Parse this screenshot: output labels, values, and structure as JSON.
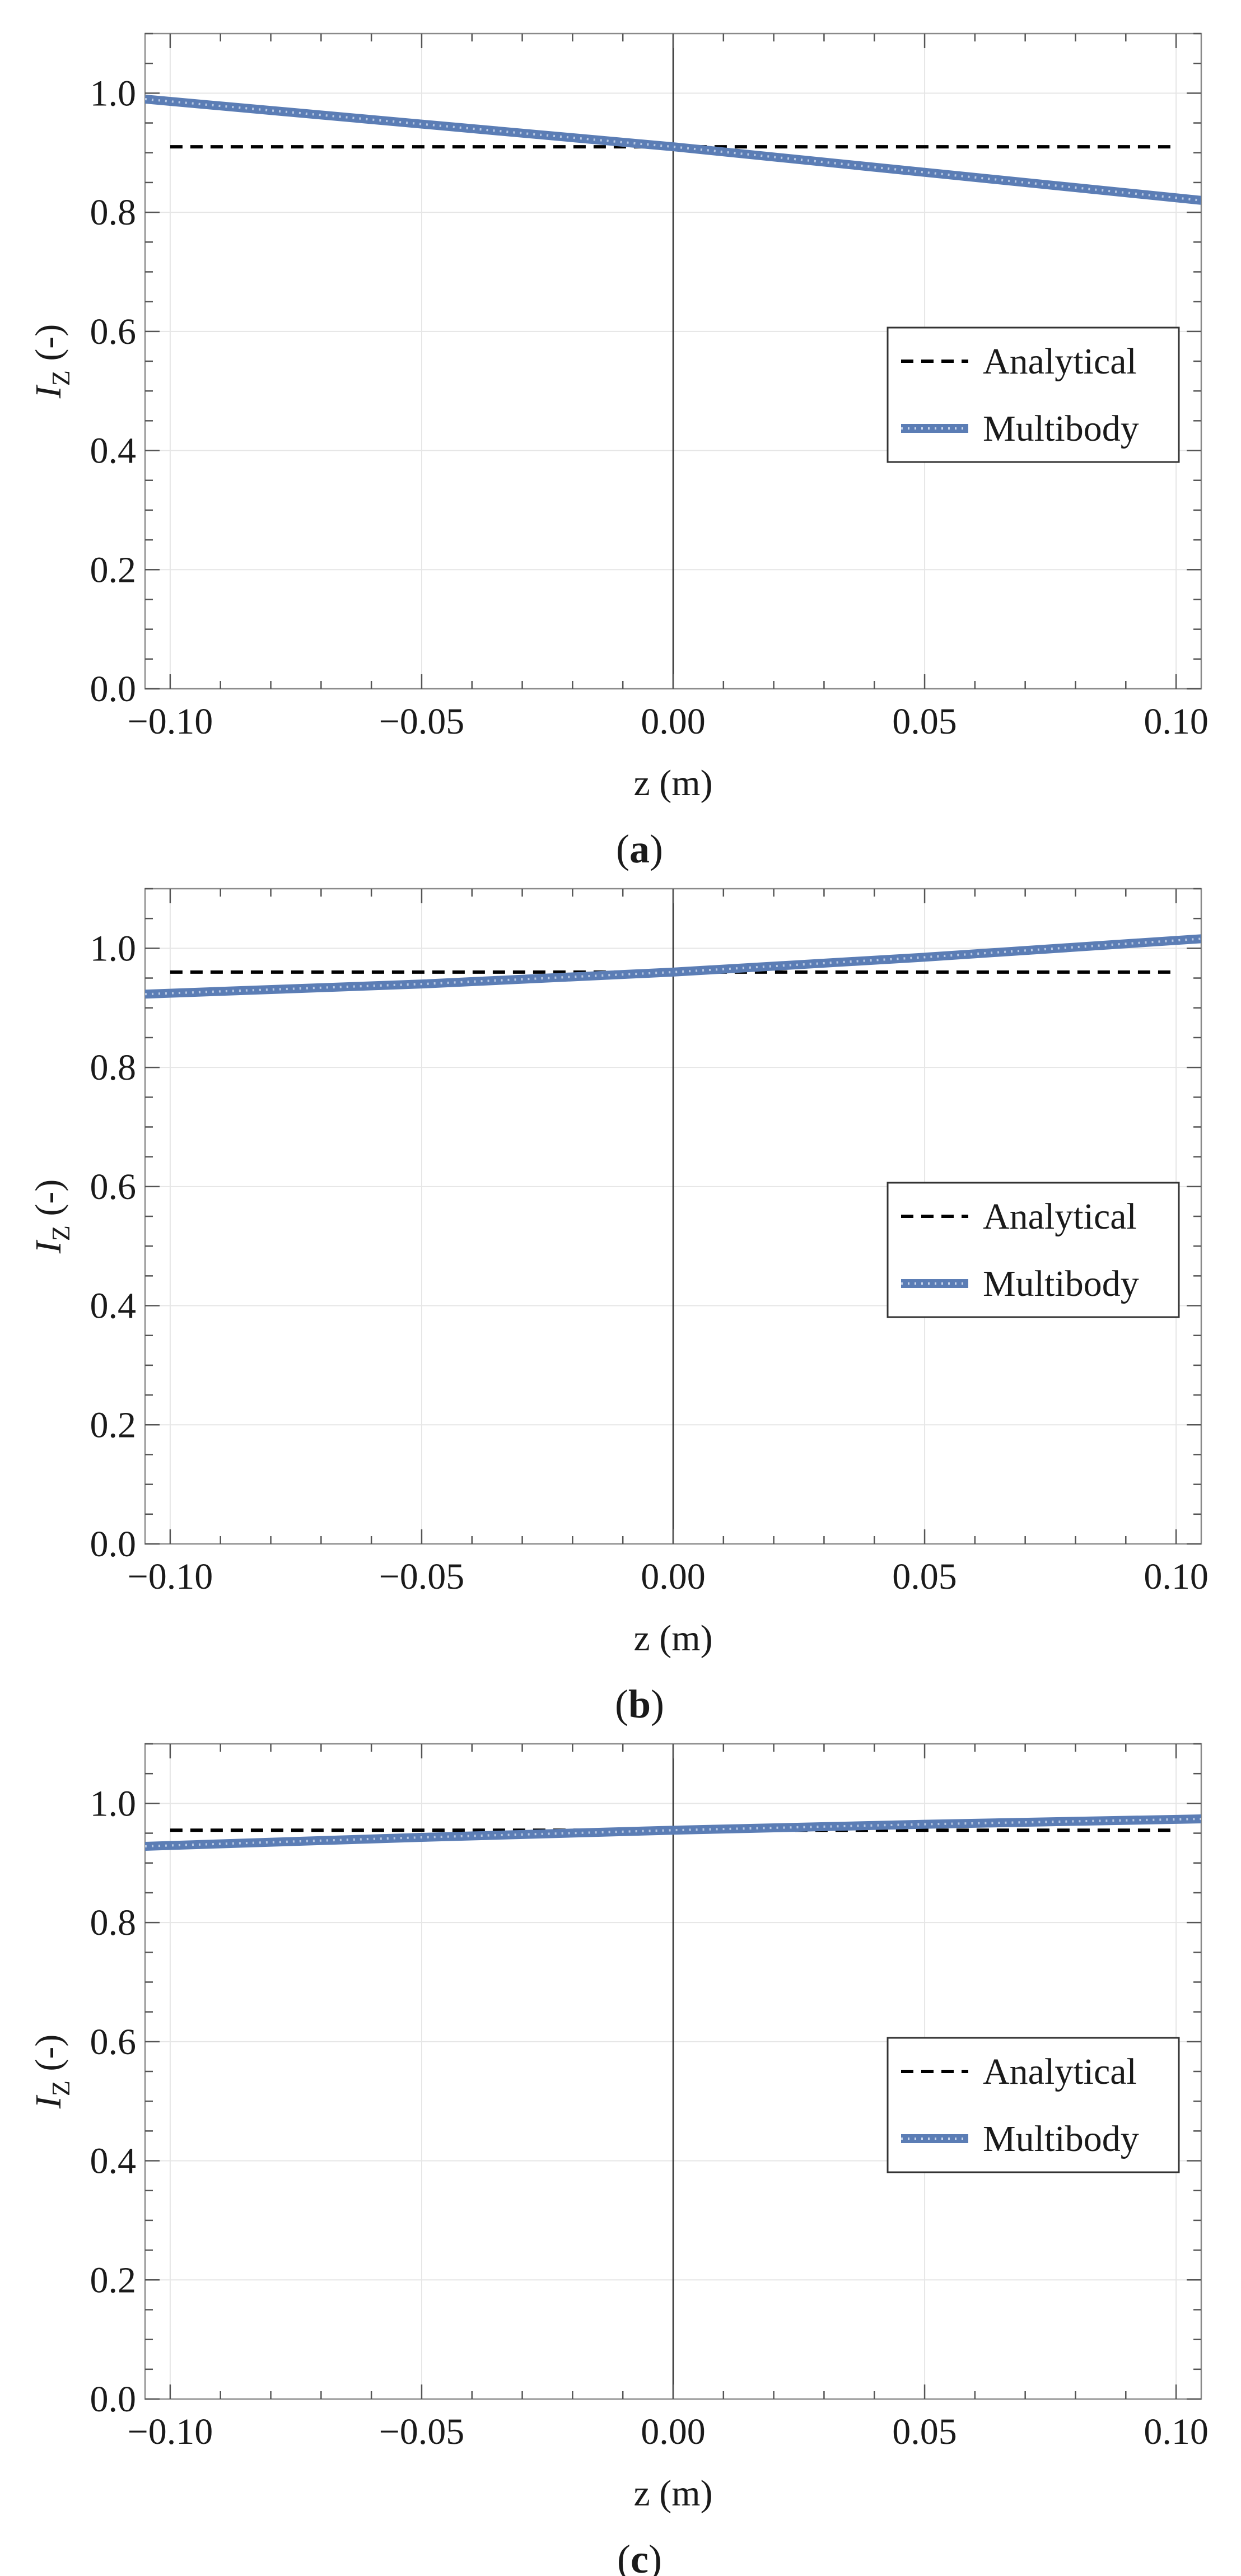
{
  "figure": {
    "subfigure_captions": [
      "(a)",
      "(b)",
      "(c)"
    ]
  },
  "chart_data": [
    {
      "type": "line",
      "panel": "a",
      "caption": "(a)",
      "caption_open": "(",
      "caption_letter": "a",
      "caption_close": ")",
      "xlabel": "z (m)",
      "ylabel_main": "I",
      "ylabel_sub": "Z",
      "ylabel_unit": " (-)",
      "xlim": [
        -0.105,
        0.105
      ],
      "ylim": [
        0.0,
        1.1
      ],
      "xticks": [
        -0.1,
        -0.05,
        0.0,
        0.05,
        0.1
      ],
      "xtick_labels": [
        "−0.10",
        "−0.05",
        "0.00",
        "0.05",
        "0.10"
      ],
      "yticks": [
        0.0,
        0.2,
        0.4,
        0.6,
        0.8,
        1.0
      ],
      "ytick_labels": [
        "0.0",
        "0.2",
        "0.4",
        "0.6",
        "0.8",
        "1.0"
      ],
      "grid": true,
      "legend_position": "right-middle",
      "series": [
        {
          "name": "Analytical",
          "style": "dashed",
          "color": "#000000",
          "x": [
            -0.1,
            0.1
          ],
          "y": [
            0.91,
            0.91
          ]
        },
        {
          "name": "Multibody",
          "style": "dotted-thick",
          "color": "#5b7db5",
          "x": [
            -0.105,
            0.0,
            0.105
          ],
          "y": [
            0.99,
            0.91,
            0.82
          ]
        }
      ]
    },
    {
      "type": "line",
      "panel": "b",
      "caption": "(b)",
      "caption_open": "(",
      "caption_letter": "b",
      "caption_close": ")",
      "xlabel": "z (m)",
      "ylabel_main": "I",
      "ylabel_sub": "Z",
      "ylabel_unit": " (-)",
      "xlim": [
        -0.105,
        0.105
      ],
      "ylim": [
        0.0,
        1.1
      ],
      "xticks": [
        -0.1,
        -0.05,
        0.0,
        0.05,
        0.1
      ],
      "xtick_labels": [
        "−0.10",
        "−0.05",
        "0.00",
        "0.05",
        "0.10"
      ],
      "yticks": [
        0.0,
        0.2,
        0.4,
        0.6,
        0.8,
        1.0
      ],
      "ytick_labels": [
        "0.0",
        "0.2",
        "0.4",
        "0.6",
        "0.8",
        "1.0"
      ],
      "grid": true,
      "legend_position": "right-middle",
      "series": [
        {
          "name": "Analytical",
          "style": "dashed",
          "color": "#000000",
          "x": [
            -0.1,
            0.1
          ],
          "y": [
            0.96,
            0.96
          ]
        },
        {
          "name": "Multibody",
          "style": "dotted-thick",
          "color": "#5b7db5",
          "x": [
            -0.105,
            -0.05,
            0.0,
            0.05,
            0.105
          ],
          "y": [
            0.923,
            0.94,
            0.96,
            0.985,
            1.016
          ]
        }
      ]
    },
    {
      "type": "line",
      "panel": "c",
      "caption": "(c)",
      "caption_open": "(",
      "caption_letter": "c",
      "caption_close": ")",
      "xlabel": "z (m)",
      "ylabel_main": "I",
      "ylabel_sub": "Z",
      "ylabel_unit": " (-)",
      "xlim": [
        -0.105,
        0.105
      ],
      "ylim": [
        0.0,
        1.1
      ],
      "xticks": [
        -0.1,
        -0.05,
        0.0,
        0.05,
        0.1
      ],
      "xtick_labels": [
        "−0.10",
        "−0.05",
        "0.00",
        "0.05",
        "0.10"
      ],
      "yticks": [
        0.0,
        0.2,
        0.4,
        0.6,
        0.8,
        1.0
      ],
      "ytick_labels": [
        "0.0",
        "0.2",
        "0.4",
        "0.6",
        "0.8",
        "1.0"
      ],
      "grid": true,
      "legend_position": "right-middle",
      "series": [
        {
          "name": "Analytical",
          "style": "dashed",
          "color": "#000000",
          "x": [
            -0.1,
            0.1
          ],
          "y": [
            0.955,
            0.955
          ]
        },
        {
          "name": "Multibody",
          "style": "dotted-thick",
          "color": "#5b7db5",
          "x": [
            -0.105,
            -0.05,
            0.0,
            0.05,
            0.105
          ],
          "y": [
            0.928,
            0.943,
            0.955,
            0.965,
            0.974
          ]
        }
      ]
    }
  ]
}
